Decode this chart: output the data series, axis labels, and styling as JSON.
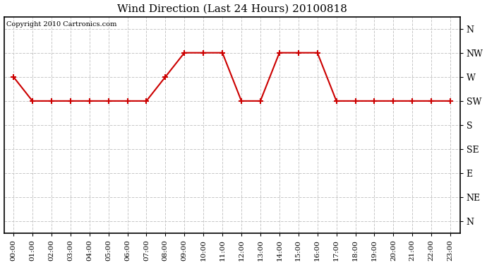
{
  "title": "Wind Direction (Last 24 Hours) 20100818",
  "copyright_text": "Copyright 2010 Cartronics.com",
  "background_color": "#ffffff",
  "plot_bg_color": "#ffffff",
  "line_color": "#cc0000",
  "marker_color": "#cc0000",
  "grid_color": "#c8c8c8",
  "x_labels": [
    "00:00",
    "01:00",
    "02:00",
    "03:00",
    "04:00",
    "05:00",
    "06:00",
    "07:00",
    "08:00",
    "09:00",
    "10:00",
    "11:00",
    "12:00",
    "13:00",
    "14:00",
    "15:00",
    "16:00",
    "17:00",
    "18:00",
    "19:00",
    "20:00",
    "21:00",
    "22:00",
    "23:00"
  ],
  "y_labels_top_to_bottom": [
    "N",
    "NW",
    "W",
    "SW",
    "S",
    "SE",
    "E",
    "NE",
    "N"
  ],
  "y_numeric": [
    8,
    7,
    6,
    5,
    4,
    3,
    2,
    1,
    0
  ],
  "wind_data": [
    6,
    5,
    5,
    5,
    5,
    5,
    5,
    5,
    6,
    7,
    7,
    7,
    5,
    5,
    7,
    7,
    7,
    5,
    5,
    5,
    5,
    5,
    5,
    5
  ]
}
